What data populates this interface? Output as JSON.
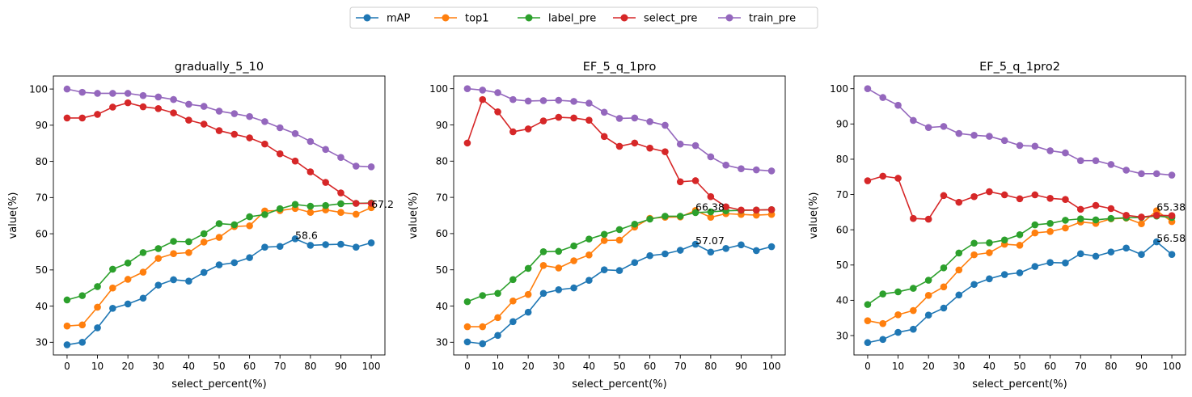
{
  "legend": {
    "placement": "top-center",
    "entries": [
      {
        "name": "mAP",
        "color": "#1f77b4"
      },
      {
        "name": "top1",
        "color": "#ff7f0e"
      },
      {
        "name": "label_pre",
        "color": "#2ca02c"
      },
      {
        "name": "select_pre",
        "color": "#d62728"
      },
      {
        "name": "train_pre",
        "color": "#9467bd"
      }
    ]
  },
  "chart_data": [
    {
      "type": "line",
      "title": "gradually_5_10",
      "xlabel": "select_percent(%)",
      "ylabel": "value(%)",
      "xlim": [
        -4.5,
        104.5
      ],
      "ylim": [
        26.5,
        103.6
      ],
      "xticks": [
        0,
        10,
        20,
        30,
        40,
        50,
        60,
        70,
        80,
        90,
        100
      ],
      "yticks": [
        30,
        40,
        50,
        60,
        70,
        80,
        90,
        100
      ],
      "grid": false,
      "x": [
        0,
        5,
        10,
        15,
        20,
        25,
        30,
        35,
        40,
        45,
        50,
        55,
        60,
        65,
        70,
        75,
        80,
        85,
        90,
        95,
        100
      ],
      "series": [
        {
          "name": "mAP",
          "color": "#1f77b4",
          "values": [
            29.3,
            30.0,
            34.0,
            39.4,
            40.6,
            42.2,
            45.8,
            47.3,
            46.9,
            49.3,
            51.4,
            52.0,
            53.4,
            56.3,
            56.5,
            58.6,
            56.8,
            57.0,
            57.1,
            56.3,
            57.5
          ]
        },
        {
          "name": "top1",
          "color": "#ff7f0e",
          "values": [
            34.5,
            34.8,
            39.7,
            45.0,
            47.4,
            49.4,
            53.2,
            54.5,
            54.8,
            57.7,
            59.0,
            62.0,
            62.2,
            66.3,
            66.4,
            67.0,
            65.9,
            66.6,
            65.9,
            65.4,
            67.2
          ]
        },
        {
          "name": "label_pre",
          "color": "#2ca02c",
          "values": [
            41.7,
            42.9,
            45.4,
            50.2,
            51.9,
            54.8,
            55.9,
            57.9,
            57.8,
            60.0,
            62.8,
            62.5,
            64.7,
            65.3,
            66.9,
            68.1,
            67.6,
            67.8,
            68.3,
            68.4,
            68.5
          ]
        },
        {
          "name": "select_pre",
          "color": "#d62728",
          "values": [
            92.0,
            92.0,
            93.0,
            95.0,
            96.2,
            95.1,
            94.6,
            93.4,
            91.4,
            90.3,
            88.5,
            87.5,
            86.5,
            84.8,
            82.1,
            80.1,
            77.1,
            74.2,
            71.3,
            68.4,
            68.4
          ]
        },
        {
          "name": "train_pre",
          "color": "#9467bd",
          "values": [
            100.0,
            99.1,
            98.8,
            98.8,
            98.8,
            98.2,
            97.8,
            97.1,
            95.8,
            95.2,
            93.9,
            93.2,
            92.4,
            91.0,
            89.3,
            87.7,
            85.5,
            83.3,
            81.1,
            78.7,
            78.5
          ]
        }
      ],
      "annotations": [
        {
          "text": "58.6",
          "x": 75,
          "y": 58.6
        },
        {
          "text": "67.2",
          "x": 100,
          "y": 67.2
        }
      ]
    },
    {
      "type": "line",
      "title": "EF_5_q_1pro",
      "xlabel": "select_percent(%)",
      "ylabel": "value(%)",
      "xlim": [
        -4.5,
        104.5
      ],
      "ylim": [
        26.5,
        103.5
      ],
      "xticks": [
        0,
        10,
        20,
        30,
        40,
        50,
        60,
        70,
        80,
        90,
        100
      ],
      "yticks": [
        30,
        40,
        50,
        60,
        70,
        80,
        90,
        100
      ],
      "grid": false,
      "x": [
        0,
        5,
        10,
        15,
        20,
        25,
        30,
        35,
        40,
        45,
        50,
        55,
        60,
        65,
        70,
        75,
        80,
        85,
        90,
        95,
        100
      ],
      "series": [
        {
          "name": "mAP",
          "color": "#1f77b4",
          "values": [
            30.1,
            29.6,
            31.9,
            35.7,
            38.3,
            43.5,
            44.5,
            45.0,
            47.1,
            50.0,
            49.8,
            52.0,
            53.9,
            54.4,
            55.4,
            57.07,
            54.9,
            55.9,
            56.9,
            55.3,
            56.4
          ]
        },
        {
          "name": "top1",
          "color": "#ff7f0e",
          "values": [
            34.3,
            34.3,
            36.8,
            41.4,
            43.2,
            51.2,
            50.5,
            52.5,
            54.1,
            58.1,
            58.2,
            61.8,
            64.2,
            64.5,
            64.6,
            66.38,
            64.5,
            65.5,
            65.3,
            65.1,
            65.3
          ]
        },
        {
          "name": "label_pre",
          "color": "#2ca02c",
          "values": [
            41.2,
            42.9,
            43.5,
            47.3,
            50.4,
            55.0,
            55.1,
            56.6,
            58.5,
            59.8,
            61.1,
            62.6,
            64.0,
            64.8,
            64.8,
            65.8,
            66.0,
            66.3,
            66.4,
            66.5,
            66.6
          ]
        },
        {
          "name": "select_pre",
          "color": "#d62728",
          "values": [
            85.0,
            97.0,
            93.6,
            88.1,
            88.9,
            91.1,
            92.1,
            91.9,
            91.3,
            86.8,
            84.1,
            85.0,
            83.6,
            82.6,
            74.3,
            74.6,
            70.2,
            67.4,
            66.5,
            66.5,
            66.6
          ]
        },
        {
          "name": "train_pre",
          "color": "#9467bd",
          "values": [
            100.0,
            99.6,
            98.9,
            97.0,
            96.6,
            96.7,
            96.8,
            96.5,
            96.0,
            93.5,
            91.8,
            91.9,
            90.9,
            89.9,
            84.7,
            84.3,
            81.2,
            78.9,
            77.9,
            77.6,
            77.3
          ]
        }
      ],
      "annotations": [
        {
          "text": "57.07",
          "x": 75,
          "y": 57.07
        },
        {
          "text": "66.38",
          "x": 75,
          "y": 66.38
        }
      ]
    },
    {
      "type": "line",
      "title": "EF_5_q_1pro2",
      "xlabel": "select_percent(%)",
      "ylabel": "value(%)",
      "xlim": [
        -4.5,
        104.5
      ],
      "ylim": [
        24.5,
        103.6
      ],
      "xticks": [
        0,
        10,
        20,
        30,
        40,
        50,
        60,
        70,
        80,
        90,
        100
      ],
      "yticks": [
        30,
        40,
        50,
        60,
        70,
        80,
        90,
        100
      ],
      "grid": false,
      "x": [
        0,
        5,
        10,
        15,
        20,
        25,
        30,
        35,
        40,
        45,
        50,
        55,
        60,
        65,
        70,
        75,
        80,
        85,
        90,
        95,
        100
      ],
      "series": [
        {
          "name": "mAP",
          "color": "#1f77b4",
          "values": [
            28.0,
            28.9,
            30.9,
            31.8,
            35.8,
            37.8,
            41.5,
            44.5,
            46.1,
            47.3,
            47.8,
            49.6,
            50.7,
            50.6,
            53.2,
            52.5,
            53.7,
            54.8,
            53.0,
            56.58,
            53.0
          ]
        },
        {
          "name": "top1",
          "color": "#ff7f0e",
          "values": [
            34.2,
            33.4,
            35.9,
            37.1,
            41.4,
            43.8,
            48.6,
            52.9,
            53.5,
            55.9,
            55.6,
            59.1,
            59.5,
            60.5,
            62.2,
            61.8,
            63.1,
            63.3,
            61.7,
            65.38,
            62.3
          ]
        },
        {
          "name": "label_pre",
          "color": "#2ca02c",
          "values": [
            38.8,
            41.8,
            42.4,
            43.4,
            45.7,
            49.2,
            53.4,
            56.2,
            56.3,
            57.1,
            58.6,
            61.4,
            61.8,
            62.7,
            63.1,
            62.8,
            63.2,
            63.4,
            63.5,
            63.9,
            63.5
          ]
        },
        {
          "name": "select_pre",
          "color": "#d62728",
          "values": [
            73.9,
            75.2,
            74.6,
            63.2,
            63.0,
            69.7,
            67.8,
            69.4,
            70.8,
            69.9,
            68.8,
            69.9,
            68.9,
            68.6,
            65.8,
            66.9,
            66.0,
            64.1,
            63.6,
            64.1,
            64.0
          ]
        },
        {
          "name": "train_pre",
          "color": "#9467bd",
          "values": [
            100.0,
            97.5,
            95.3,
            91.0,
            89.0,
            89.3,
            87.3,
            86.8,
            86.5,
            85.3,
            83.9,
            83.7,
            82.4,
            81.8,
            79.6,
            79.6,
            78.5,
            76.9,
            75.9,
            75.9,
            75.5
          ]
        }
      ],
      "annotations": [
        {
          "text": "56.58",
          "x": 95,
          "y": 56.58
        },
        {
          "text": "65.38",
          "x": 95,
          "y": 65.38
        }
      ]
    }
  ]
}
